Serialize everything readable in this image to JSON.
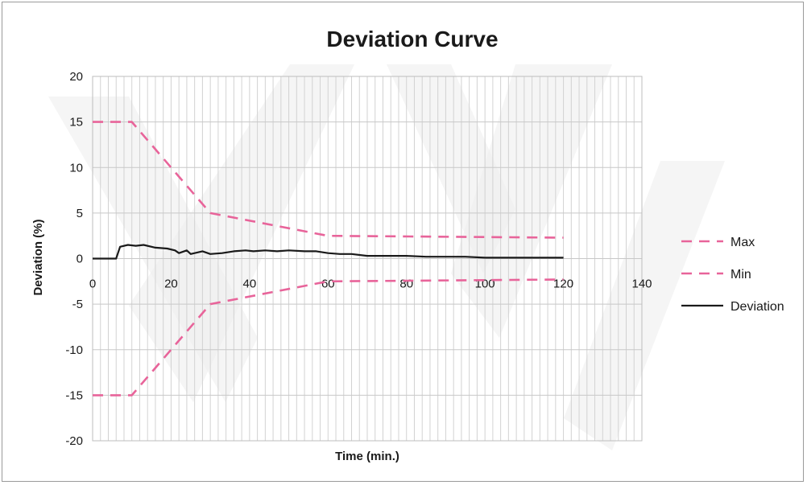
{
  "chart_data": {
    "type": "line",
    "title": "Deviation Curve",
    "xlabel": "Time (min.)",
    "ylabel": "Deviation (%)",
    "xlim": [
      0,
      140
    ],
    "ylim": [
      -20,
      20
    ],
    "x_ticks": [
      "0",
      "20",
      "40",
      "60",
      "80",
      "100",
      "120",
      "140"
    ],
    "y_ticks": [
      "20",
      "15",
      "10",
      "5",
      "0",
      "-5",
      "-10",
      "-15",
      "-20"
    ],
    "grid": true,
    "legend_position": "right",
    "series": [
      {
        "name": "Max",
        "style": "dashed",
        "color": "#e8649a",
        "points": [
          [
            0,
            15
          ],
          [
            10,
            15
          ],
          [
            30,
            5
          ],
          [
            60,
            2.5
          ],
          [
            120,
            2.3
          ]
        ]
      },
      {
        "name": "Min",
        "style": "dashed",
        "color": "#e8649a",
        "points": [
          [
            0,
            -15
          ],
          [
            10,
            -15
          ],
          [
            30,
            -5
          ],
          [
            60,
            -2.5
          ],
          [
            120,
            -2.3
          ]
        ]
      },
      {
        "name": "Deviation",
        "style": "solid",
        "color": "#1a1a1a",
        "points": [
          [
            0,
            0
          ],
          [
            6,
            0
          ],
          [
            7,
            1.3
          ],
          [
            9,
            1.5
          ],
          [
            11,
            1.4
          ],
          [
            13,
            1.5
          ],
          [
            16,
            1.2
          ],
          [
            19,
            1.1
          ],
          [
            21,
            0.9
          ],
          [
            22,
            0.6
          ],
          [
            24,
            0.9
          ],
          [
            25,
            0.5
          ],
          [
            28,
            0.8
          ],
          [
            30,
            0.5
          ],
          [
            33,
            0.6
          ],
          [
            36,
            0.8
          ],
          [
            39,
            0.9
          ],
          [
            41,
            0.8
          ],
          [
            44,
            0.9
          ],
          [
            47,
            0.8
          ],
          [
            50,
            0.9
          ],
          [
            54,
            0.8
          ],
          [
            57,
            0.8
          ],
          [
            60,
            0.6
          ],
          [
            63,
            0.5
          ],
          [
            66,
            0.5
          ],
          [
            70,
            0.3
          ],
          [
            75,
            0.3
          ],
          [
            80,
            0.3
          ],
          [
            85,
            0.2
          ],
          [
            90,
            0.2
          ],
          [
            95,
            0.2
          ],
          [
            100,
            0.1
          ],
          [
            105,
            0.1
          ],
          [
            110,
            0.1
          ],
          [
            115,
            0.1
          ],
          [
            120,
            0.1
          ]
        ]
      }
    ]
  }
}
